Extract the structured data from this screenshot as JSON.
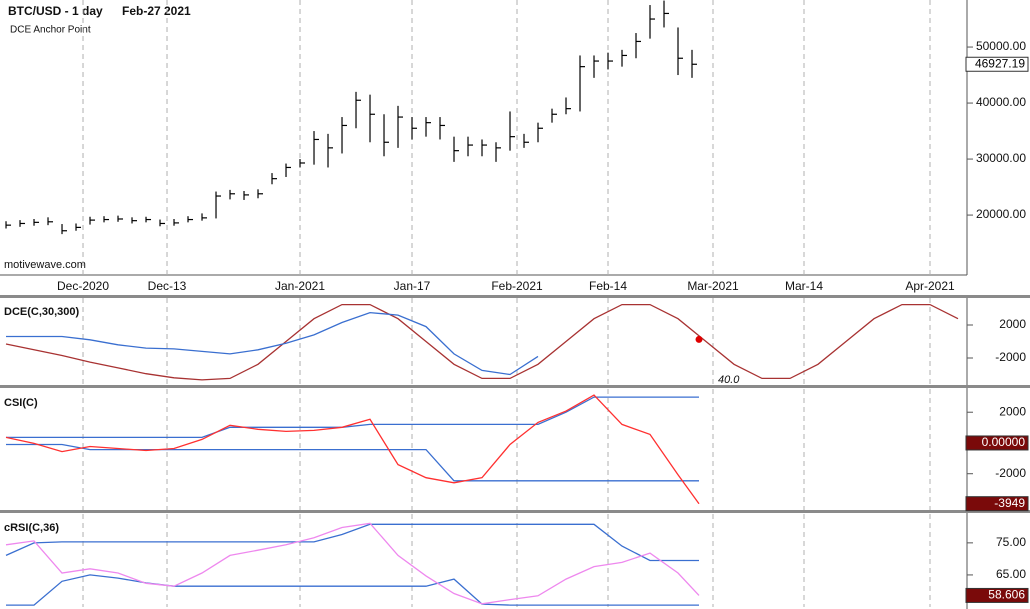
{
  "chart_data": [
    {
      "type": "ohlc",
      "title": "BTC/USD - 1 day",
      "subtitle": "Feb-27 2021",
      "note": "DCE Anchor Point",
      "watermark": "motivewave.com",
      "color": "#000000",
      "x": [
        0,
        2,
        4,
        6,
        8,
        10,
        12,
        14,
        16,
        18,
        20,
        22,
        24,
        26,
        28,
        30,
        32,
        34,
        36,
        38,
        40,
        42,
        44,
        46,
        48,
        50,
        52,
        54,
        56,
        58,
        60,
        62,
        64,
        66,
        68,
        70,
        72,
        74,
        76,
        78,
        80,
        82,
        84,
        86,
        88,
        90,
        92,
        94,
        96,
        98
      ],
      "high": [
        18900,
        19100,
        19300,
        19600,
        18400,
        18500,
        19700,
        19800,
        19900,
        19600,
        19700,
        19200,
        19300,
        19800,
        20300,
        24200,
        24500,
        24300,
        24600,
        27500,
        29200,
        30000,
        35000,
        34500,
        37500,
        42000,
        41500,
        38000,
        39500,
        37500,
        37500,
        37500,
        34000,
        34000,
        33500,
        33000,
        38500,
        34500,
        36500,
        39000,
        41000,
        48500,
        48500,
        49000,
        49500,
        52500,
        57500,
        58300,
        53500,
        49500
      ],
      "low": [
        17600,
        17900,
        18100,
        18200,
        16600,
        17200,
        18300,
        18700,
        18800,
        18500,
        18700,
        18000,
        18100,
        18700,
        19000,
        19400,
        22800,
        22700,
        23000,
        25500,
        26800,
        28500,
        29000,
        28500,
        31000,
        35500,
        33000,
        30500,
        32000,
        33500,
        34000,
        33500,
        29500,
        30500,
        30500,
        29500,
        31500,
        32000,
        33000,
        36500,
        38000,
        38500,
        44500,
        46000,
        46500,
        48000,
        51500,
        53500,
        45000,
        44500
      ],
      "close": [
        18200,
        18500,
        18700,
        18800,
        17200,
        17800,
        19100,
        19200,
        19300,
        19000,
        19200,
        18500,
        18600,
        19200,
        19500,
        23400,
        23800,
        23600,
        23800,
        26500,
        28500,
        29300,
        33500,
        32000,
        36000,
        40500,
        38000,
        33000,
        37500,
        35500,
        36500,
        36000,
        31500,
        32500,
        32500,
        32000,
        34000,
        33000,
        35500,
        38000,
        39000,
        46500,
        47500,
        47500,
        48500,
        51000,
        55000,
        56000,
        48000,
        46927.19
      ],
      "xlim": [
        -0.86,
        137
      ],
      "xticks": [
        {
          "value": 11,
          "label": "Dec-2020"
        },
        {
          "value": 23,
          "label": "Dec-13"
        },
        {
          "value": 42,
          "label": "Jan-2021"
        },
        {
          "value": 58,
          "label": "Jan-17"
        },
        {
          "value": 73,
          "label": "Feb-2021"
        },
        {
          "value": 86,
          "label": "Feb-14"
        },
        {
          "value": 101,
          "label": "Mar-2021"
        },
        {
          "value": 114,
          "label": "Mar-14"
        },
        {
          "value": 132,
          "label": "Apr-2021"
        }
      ],
      "ylim": [
        9300,
        58400
      ],
      "yticks": [
        {
          "value": 20000,
          "label": "20000.00"
        },
        {
          "value": 30000,
          "label": "30000.00"
        },
        {
          "value": 40000,
          "label": "40000.00"
        },
        {
          "value": 50000,
          "label": "50000.00"
        }
      ],
      "tags": [
        46927.19
      ],
      "tag_fill": "#ffffff",
      "tag_text": "#000000"
    },
    {
      "type": "line",
      "title": "DCE(C,30,300)",
      "x": [
        0,
        4,
        8,
        12,
        16,
        20,
        24,
        28,
        32,
        36,
        40,
        44,
        48,
        52,
        56,
        60,
        64,
        68,
        72,
        76,
        80,
        84,
        88,
        92,
        96,
        100,
        104,
        108,
        112,
        116,
        120,
        124,
        128,
        132,
        136
      ],
      "series": [
        {
          "color": "#a83232",
          "values": [
            -300,
            -1000,
            -1700,
            -2500,
            -3200,
            -3900,
            -4400,
            -4650,
            -4470,
            -2760,
            0,
            2760,
            4470,
            4470,
            2760,
            0,
            -2760,
            -4470,
            -4470,
            -2760,
            0,
            2760,
            4470,
            4470,
            2760,
            0,
            -2760,
            -4470,
            -4470,
            -2760,
            0,
            2760,
            4470,
            4470,
            2760
          ]
        },
        {
          "color": "#3a6fd0",
          "values": [
            600,
            600,
            600,
            200,
            -400,
            -800,
            -900,
            -1200,
            -1500,
            -1000,
            -200,
            800,
            2300,
            3500,
            3200,
            1800,
            -1500,
            -3500,
            -4000,
            -1800,
            null,
            null,
            null,
            null,
            null,
            null,
            null,
            null,
            null,
            null,
            null,
            null,
            null,
            null,
            null
          ]
        }
      ],
      "dot": {
        "x": 99,
        "value": 250,
        "color": "#e00000"
      },
      "annotation": "40.0",
      "xlim": [
        -0.86,
        137
      ],
      "ylim": [
        -5270,
        5270
      ],
      "yticks": [
        2000,
        -2000
      ]
    },
    {
      "type": "line",
      "title": "CSI(C)",
      "x": [
        0,
        4,
        8,
        12,
        16,
        20,
        24,
        28,
        32,
        36,
        40,
        44,
        48,
        52,
        56,
        60,
        64,
        68,
        72,
        76,
        80,
        84,
        88,
        92,
        96,
        99
      ],
      "series": [
        {
          "color": "#3a6fd0",
          "values": [
            360,
            360,
            360,
            360,
            360,
            360,
            360,
            360,
            1020,
            1020,
            1020,
            1020,
            1020,
            1210,
            1210,
            1210,
            1210,
            1210,
            1210,
            1210,
            2000,
            2980,
            2980,
            2980,
            2980,
            2980
          ]
        },
        {
          "color": "#3a6fd0",
          "values": [
            -100,
            -100,
            -100,
            -430,
            -430,
            -430,
            -430,
            -430,
            -430,
            -430,
            -430,
            -430,
            -430,
            -430,
            -430,
            -430,
            -2460,
            -2460,
            -2460,
            -2460,
            -2460,
            -2460,
            -2460,
            -2460,
            -2460,
            -2460
          ]
        },
        {
          "color": "#ff3030",
          "values": [
            360,
            -30,
            -560,
            -230,
            -360,
            -490,
            -360,
            230,
            1150,
            890,
            750,
            820,
            1020,
            1540,
            -1410,
            -2260,
            -2590,
            -2260,
            -100,
            1340,
            2070,
            3110,
            1210,
            560,
            -2070,
            -3949
          ]
        }
      ],
      "xlim": [
        -0.86,
        137
      ],
      "ylim": [
        -4360,
        3510
      ],
      "yticks": [
        2000,
        -2000
      ],
      "tags": [
        {
          "value": 0,
          "label": "0.00000"
        },
        -3949
      ],
      "tag_fill": "#7a0a0a",
      "tag_text": "#ffffff"
    },
    {
      "type": "line",
      "title": "cRSI(C,36)",
      "x": [
        0,
        4,
        8,
        12,
        16,
        20,
        24,
        28,
        32,
        36,
        40,
        44,
        48,
        52,
        56,
        60,
        64,
        68,
        72,
        76,
        80,
        84,
        88,
        92,
        96,
        99
      ],
      "series": [
        {
          "color": "#3a6fd0",
          "values": [
            71.1,
            75.0,
            75.3,
            75.3,
            75.3,
            75.3,
            75.3,
            75.3,
            75.3,
            75.3,
            75.3,
            75.3,
            77.6,
            80.8,
            80.8,
            80.8,
            80.8,
            80.8,
            80.8,
            80.8,
            80.8,
            80.8,
            74.0,
            69.5,
            69.5,
            69.5
          ]
        },
        {
          "color": "#3a6fd0",
          "values": [
            55.6,
            55.6,
            63.0,
            65.0,
            64.0,
            62.5,
            61.5,
            61.5,
            61.5,
            61.5,
            61.5,
            61.5,
            61.5,
            61.5,
            61.5,
            61.5,
            63.7,
            55.9,
            55.6,
            55.6,
            55.6,
            55.6,
            55.6,
            55.6,
            55.6,
            55.6
          ]
        },
        {
          "color": "#ee88ee",
          "values": [
            74.4,
            75.6,
            65.6,
            66.9,
            65.6,
            62.4,
            61.5,
            65.6,
            71.1,
            72.7,
            74.4,
            76.6,
            79.8,
            81.1,
            71.1,
            64.7,
            59.2,
            56.0,
            57.3,
            58.5,
            63.7,
            67.6,
            68.9,
            71.8,
            65.6,
            58.606
          ]
        }
      ],
      "xlim": [
        -0.86,
        137
      ],
      "ylim": [
        55.0,
        84.0
      ],
      "yticks": [
        {
          "value": 75,
          "label": "75.00"
        },
        {
          "value": 65,
          "label": "65.00"
        }
      ],
      "tags": [
        58.606
      ],
      "tag_fill": "#7a0a0a",
      "tag_text": "#ffffff"
    }
  ]
}
